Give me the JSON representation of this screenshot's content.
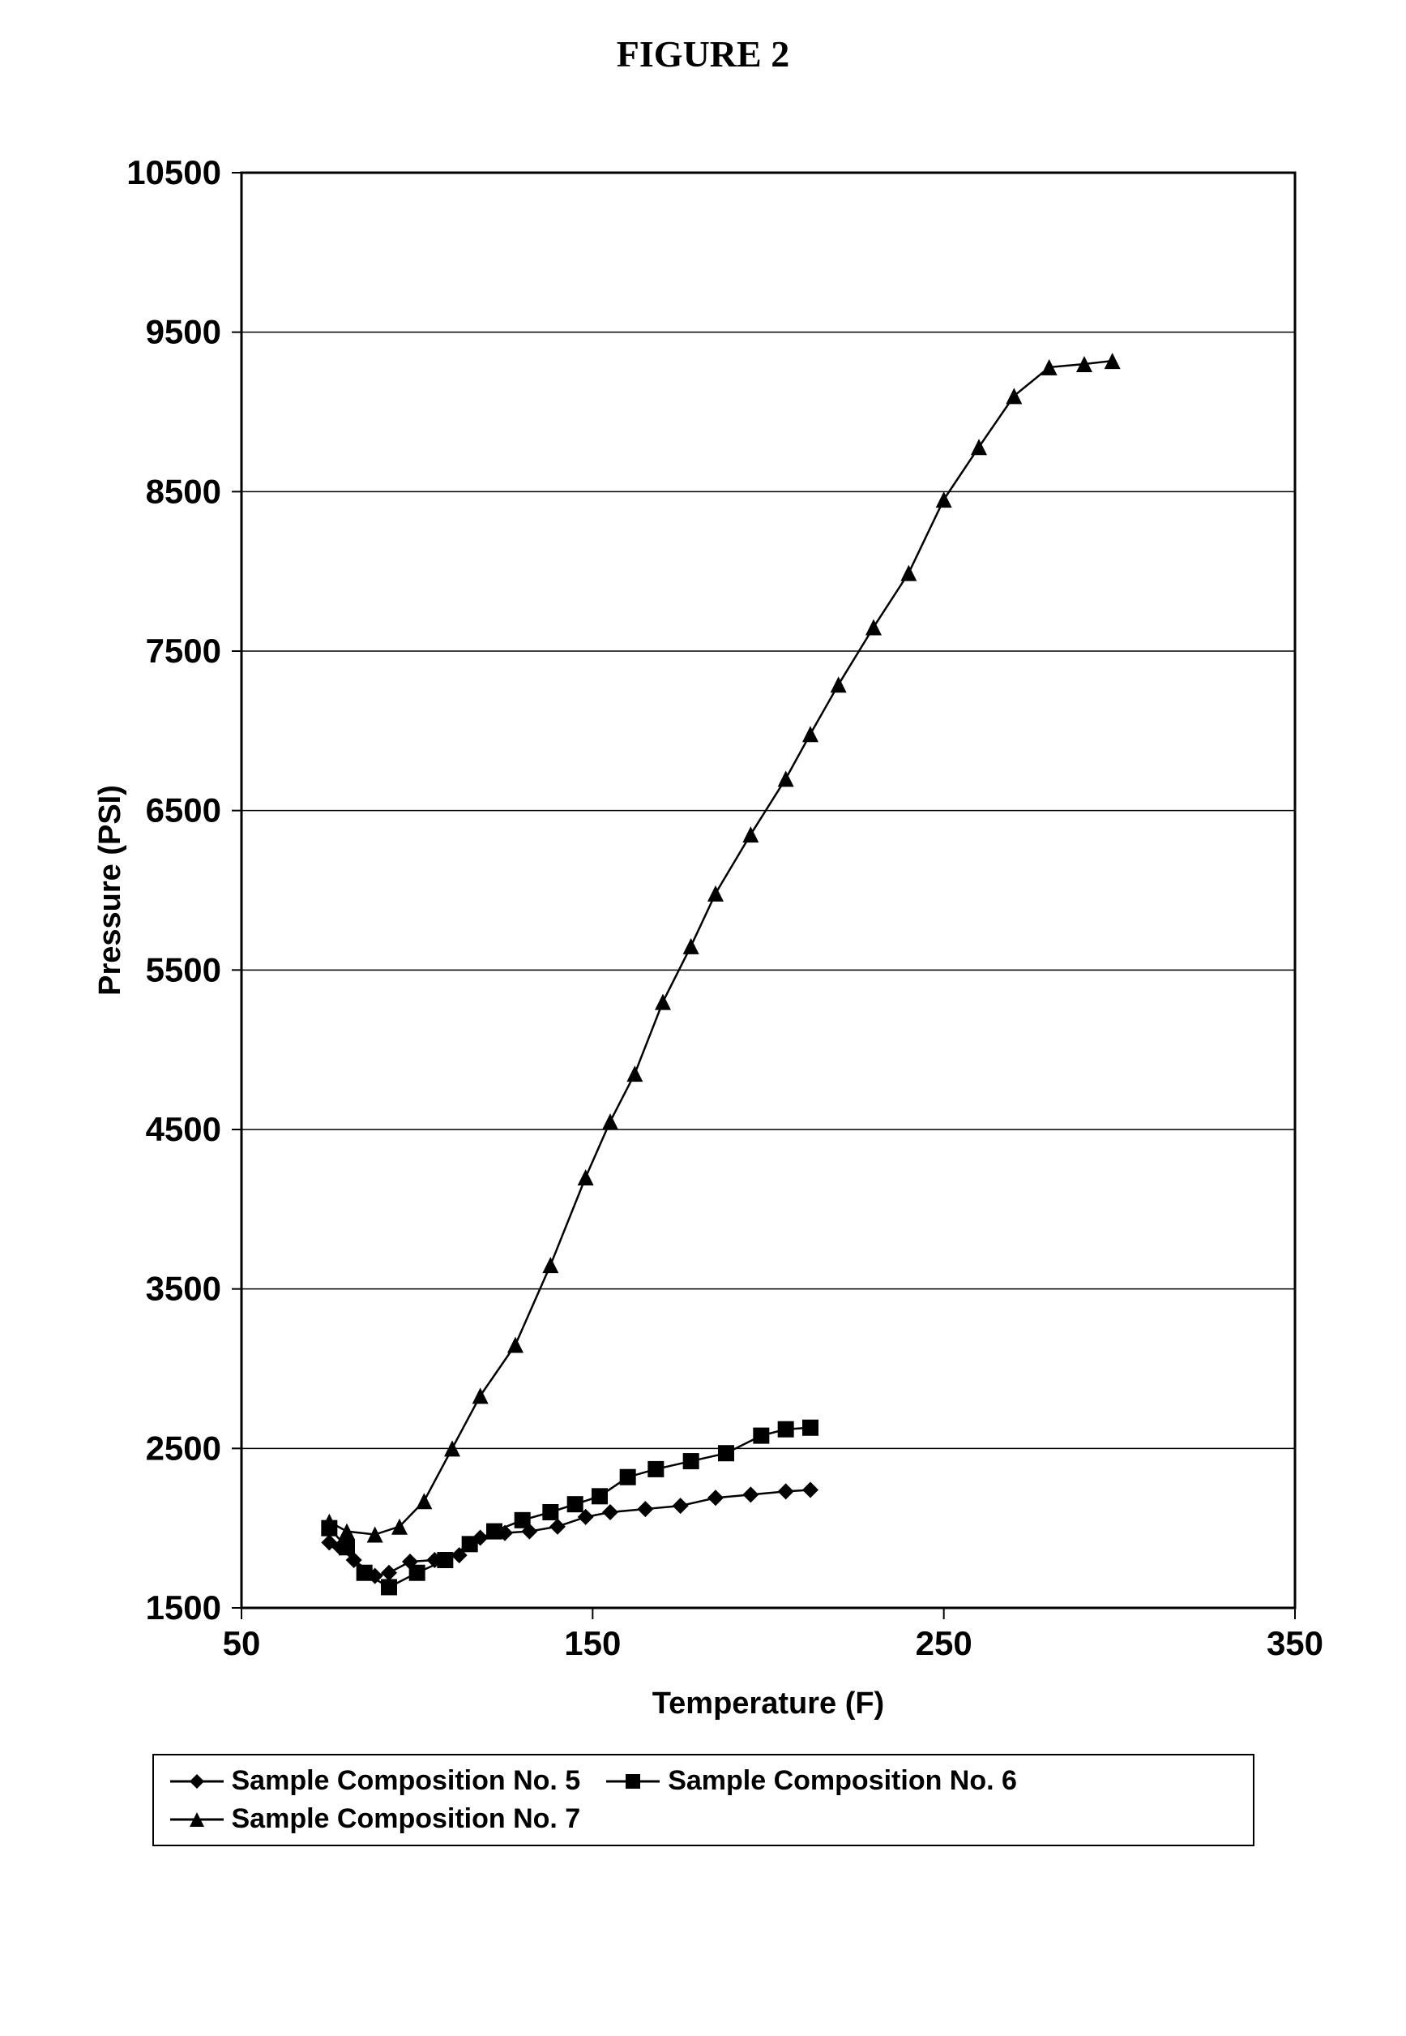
{
  "title": "FIGURE 2",
  "chart": {
    "type": "line",
    "xlabel": "Temperature (F)",
    "ylabel": "Pressure (PSI)",
    "xlabel_fontsize": 38,
    "ylabel_fontsize": 38,
    "tick_fontsize": 42,
    "xlim": [
      50,
      350
    ],
    "ylim": [
      1500,
      10500
    ],
    "xticks": [
      50,
      150,
      250,
      350
    ],
    "yticks": [
      1500,
      2500,
      3500,
      4500,
      5500,
      6500,
      7500,
      8500,
      9500,
      10500
    ],
    "background_color": "#ffffff",
    "axis_color": "#000000",
    "grid_color": "#000000",
    "grid_width": 1.5,
    "plot_border_width": 3,
    "line_width": 2.5,
    "marker_size": 10,
    "series": [
      {
        "name": "Sample Composition No. 5",
        "marker": "diamond",
        "color": "#000000",
        "x": [
          75,
          78,
          82,
          88,
          92,
          98,
          105,
          112,
          118,
          125,
          132,
          140,
          148,
          155,
          165,
          175,
          185,
          195,
          205,
          212
        ],
        "y": [
          1910,
          1880,
          1800,
          1700,
          1720,
          1790,
          1800,
          1830,
          1940,
          1970,
          1980,
          2010,
          2070,
          2100,
          2120,
          2140,
          2190,
          2210,
          2230,
          2240
        ]
      },
      {
        "name": "Sample Composition No. 6",
        "marker": "square",
        "color": "#000000",
        "x": [
          75,
          80,
          85,
          92,
          100,
          108,
          115,
          122,
          130,
          138,
          145,
          152,
          160,
          168,
          178,
          188,
          198,
          205,
          212
        ],
        "y": [
          2000,
          1880,
          1720,
          1630,
          1720,
          1800,
          1900,
          1980,
          2050,
          2100,
          2150,
          2200,
          2320,
          2370,
          2420,
          2470,
          2580,
          2620,
          2630
        ]
      },
      {
        "name": "Sample Composition No. 7",
        "marker": "triangle",
        "color": "#000000",
        "x": [
          75,
          80,
          88,
          95,
          102,
          110,
          118,
          128,
          138,
          148,
          155,
          162,
          170,
          178,
          185,
          195,
          205,
          212,
          220,
          230,
          240,
          250,
          260,
          270,
          280,
          290,
          298
        ],
        "y": [
          2040,
          1980,
          1960,
          2010,
          2170,
          2500,
          2830,
          3150,
          3650,
          4200,
          4550,
          4850,
          5300,
          5650,
          5980,
          6350,
          6700,
          6980,
          7290,
          7650,
          7990,
          8450,
          8780,
          9100,
          9280,
          9300,
          9320
        ]
      }
    ]
  },
  "legend": {
    "border_color": "#000000",
    "border_width": 2,
    "fontsize": 34,
    "font_weight": "bold"
  }
}
